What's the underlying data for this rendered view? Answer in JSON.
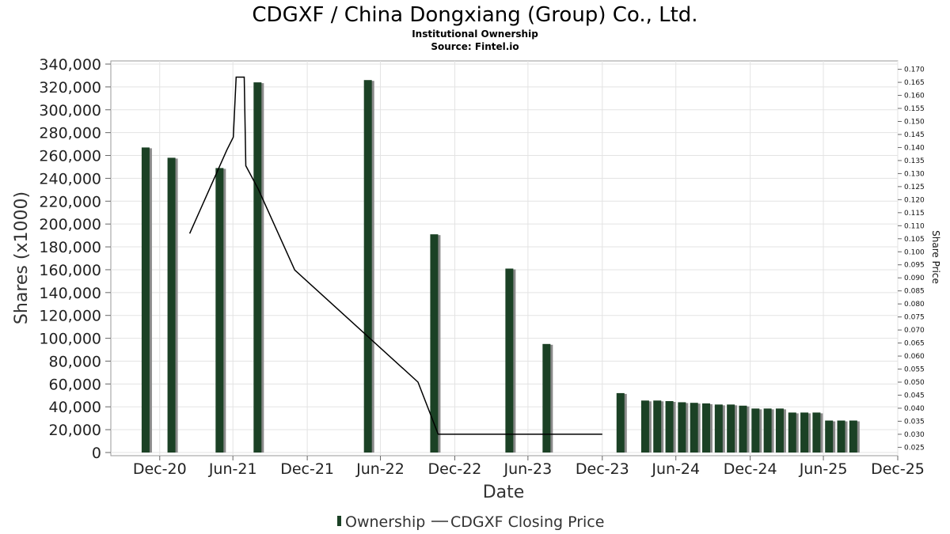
{
  "header": {
    "title": "CDGXF / China Dongxiang (Group) Co., Ltd.",
    "subtitle": "Institutional Ownership",
    "source": "Source: Fintel.io"
  },
  "chart_data": {
    "type": "bar",
    "xlabel": "Date",
    "ylabel": "Shares (x1000)",
    "y2label": "Share Price",
    "ylim": [
      0,
      340000
    ],
    "y2lim": [
      0.023,
      0.172
    ],
    "x_range": [
      "2020-09-01",
      "2025-12-31"
    ],
    "yticks": [
      0,
      20000,
      40000,
      60000,
      80000,
      100000,
      120000,
      140000,
      160000,
      180000,
      200000,
      220000,
      240000,
      260000,
      280000,
      300000,
      320000,
      340000
    ],
    "ytick_labels": [
      "0",
      "20,000",
      "40,000",
      "60,000",
      "80,000",
      "100,000",
      "120,000",
      "140,000",
      "160,000",
      "180,000",
      "200,000",
      "220,000",
      "240,000",
      "260,000",
      "280,000",
      "300,000",
      "320,000",
      "340,000"
    ],
    "y2ticks": [
      0.025,
      0.03,
      0.035,
      0.04,
      0.045,
      0.05,
      0.055,
      0.06,
      0.065,
      0.07,
      0.075,
      0.08,
      0.085,
      0.09,
      0.095,
      0.1,
      0.105,
      0.11,
      0.115,
      0.12,
      0.125,
      0.13,
      0.135,
      0.14,
      0.145,
      0.15,
      0.155,
      0.16,
      0.165,
      0.17
    ],
    "y2tick_labels": [
      "0.025",
      "0.030",
      "0.035",
      "0.040",
      "0.045",
      "0.050",
      "0.055",
      "0.060",
      "0.065",
      "0.070",
      "0.075",
      "0.080",
      "0.085",
      "0.090",
      "0.095",
      "0.100",
      "0.105",
      "0.110",
      "0.115",
      "0.120",
      "0.125",
      "0.130",
      "0.135",
      "0.140",
      "0.145",
      "0.150",
      "0.155",
      "0.160",
      "0.165",
      "0.170"
    ],
    "xticks": [
      {
        "date": "2020-12-31",
        "label": "Dec-20"
      },
      {
        "date": "2021-06-30",
        "label": "Jun-21"
      },
      {
        "date": "2021-12-31",
        "label": "Dec-21"
      },
      {
        "date": "2022-06-30",
        "label": "Jun-22"
      },
      {
        "date": "2022-12-31",
        "label": "Dec-22"
      },
      {
        "date": "2023-06-30",
        "label": "Jun-23"
      },
      {
        "date": "2023-12-31",
        "label": "Dec-23"
      },
      {
        "date": "2024-06-30",
        "label": "Jun-24"
      },
      {
        "date": "2024-12-31",
        "label": "Dec-24"
      },
      {
        "date": "2025-06-30",
        "label": "Jun-25"
      },
      {
        "date": "2025-12-31",
        "label": "Dec-25"
      }
    ],
    "series": [
      {
        "name": "Ownership",
        "type": "bar",
        "color": "#1b4125",
        "points": [
          {
            "x": "2020-11-26",
            "y": 267000
          },
          {
            "x": "2021-01-29",
            "y": 258000
          },
          {
            "x": "2021-05-28",
            "y": 249000
          },
          {
            "x": "2021-08-30",
            "y": 324000
          },
          {
            "x": "2022-05-30",
            "y": 326000
          },
          {
            "x": "2022-11-10",
            "y": 191000
          },
          {
            "x": "2023-05-15",
            "y": 161000
          },
          {
            "x": "2023-08-15",
            "y": 95000
          },
          {
            "x": "2024-02-14",
            "y": 52000
          },
          {
            "x": "2024-04-15",
            "y": 45500
          },
          {
            "x": "2024-05-15",
            "y": 45500
          },
          {
            "x": "2024-06-14",
            "y": 45000
          },
          {
            "x": "2024-07-15",
            "y": 44000
          },
          {
            "x": "2024-08-14",
            "y": 43500
          },
          {
            "x": "2024-09-13",
            "y": 43000
          },
          {
            "x": "2024-10-14",
            "y": 42000
          },
          {
            "x": "2024-11-13",
            "y": 42000
          },
          {
            "x": "2024-12-13",
            "y": 41000
          },
          {
            "x": "2025-01-13",
            "y": 38500
          },
          {
            "x": "2025-02-12",
            "y": 38500
          },
          {
            "x": "2025-03-14",
            "y": 38500
          },
          {
            "x": "2025-04-14",
            "y": 35000
          },
          {
            "x": "2025-05-14",
            "y": 35000
          },
          {
            "x": "2025-06-13",
            "y": 35000
          },
          {
            "x": "2025-07-14",
            "y": 28000
          },
          {
            "x": "2025-08-13",
            "y": 28000
          },
          {
            "x": "2025-09-12",
            "y": 28000
          }
        ]
      },
      {
        "name": "CDGXF Closing Price",
        "type": "line",
        "axis": "right",
        "color": "#000000",
        "points": [
          {
            "x": "2021-03-15",
            "y": 0.107
          },
          {
            "x": "2021-06-15",
            "y": 0.139
          },
          {
            "x": "2021-07-01",
            "y": 0.144
          },
          {
            "x": "2021-07-08",
            "y": 0.167
          },
          {
            "x": "2021-07-28",
            "y": 0.167
          },
          {
            "x": "2021-08-01",
            "y": 0.133
          },
          {
            "x": "2021-09-01",
            "y": 0.124
          },
          {
            "x": "2021-11-30",
            "y": 0.093
          },
          {
            "x": "2022-10-01",
            "y": 0.05
          },
          {
            "x": "2022-11-20",
            "y": 0.03
          },
          {
            "x": "2023-12-31",
            "y": 0.03
          }
        ]
      }
    ],
    "legend": {
      "position": "bottom",
      "entries": [
        "Ownership",
        "CDGXF Closing Price"
      ]
    }
  }
}
